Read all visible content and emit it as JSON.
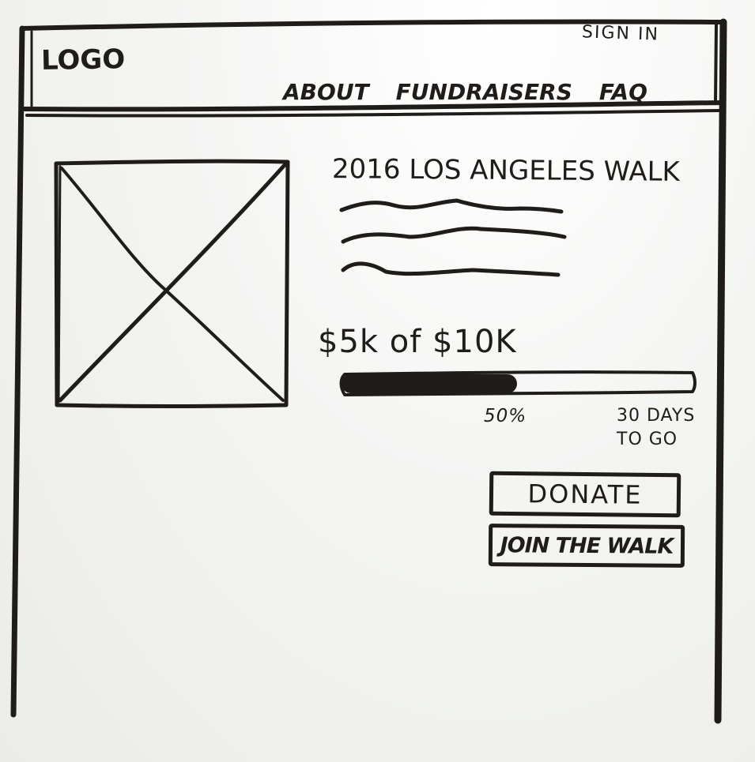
{
  "header": {
    "logo": "LOGO",
    "sign_in": "SIGN IN",
    "nav": [
      "ABOUT",
      "FUNDRAISERS",
      "FAQ"
    ]
  },
  "event": {
    "title": "2016 LOS ANGELES WALK",
    "image_alt_icon": "image-placeholder-icon",
    "description_lines": 3
  },
  "fundraising": {
    "raised_text": "$5k of $10K",
    "progress_fraction": 0.5,
    "percent_label": "50%",
    "days_line1": "30 DAYS",
    "days_line2": "TO GO"
  },
  "actions": {
    "donate": "DONATE",
    "join": "JOIN THE WALK"
  },
  "colors": {
    "ink": "#1f1c19",
    "board": "#f6f7f5"
  }
}
